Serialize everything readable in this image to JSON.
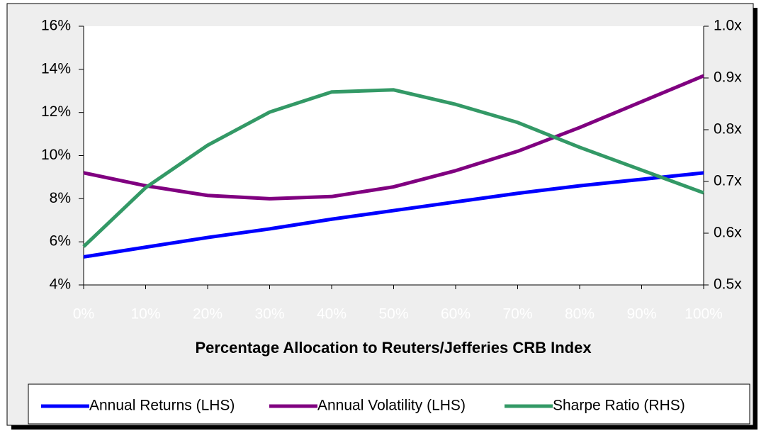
{
  "chart_data": {
    "type": "line",
    "x_label": "Percentage Allocation to Reuters/Jefferies CRB Index",
    "x": [
      0,
      10,
      20,
      30,
      40,
      50,
      60,
      70,
      80,
      90,
      100
    ],
    "xlim": [
      0,
      100
    ],
    "xticks": [
      {
        "value": 0,
        "label": "0%"
      },
      {
        "value": 10,
        "label": "10%"
      },
      {
        "value": 20,
        "label": "20%"
      },
      {
        "value": 30,
        "label": "30%"
      },
      {
        "value": 40,
        "label": "40%"
      },
      {
        "value": 50,
        "label": "50%"
      },
      {
        "value": 60,
        "label": "60%"
      },
      {
        "value": 70,
        "label": "70%"
      },
      {
        "value": 80,
        "label": "80%"
      },
      {
        "value": 90,
        "label": "90%"
      },
      {
        "value": 100,
        "label": "100%"
      }
    ],
    "ylim": [
      4,
      16
    ],
    "yticks": [
      {
        "value": 4,
        "label": "4%"
      },
      {
        "value": 6,
        "label": "6%"
      },
      {
        "value": 8,
        "label": "8%"
      },
      {
        "value": 10,
        "label": "10%"
      },
      {
        "value": 12,
        "label": "12%"
      },
      {
        "value": 14,
        "label": "14%"
      },
      {
        "value": 16,
        "label": "16%"
      }
    ],
    "y2lim": [
      0.5,
      1.0
    ],
    "y2ticks": [
      {
        "value": 0.5,
        "label": "0.5x"
      },
      {
        "value": 0.6,
        "label": "0.6x"
      },
      {
        "value": 0.7,
        "label": "0.7x"
      },
      {
        "value": 0.8,
        "label": "0.8x"
      },
      {
        "value": 0.9,
        "label": "0.9x"
      },
      {
        "value": 1.0,
        "label": "1.0x"
      }
    ],
    "legend": "bottom",
    "series": [
      {
        "name": "Annual Returns (LHS)",
        "color": "#0000ff",
        "values": [
          5.3,
          5.75,
          6.2,
          6.6,
          7.05,
          7.45,
          7.85,
          8.25,
          8.6,
          8.9,
          9.2
        ]
      },
      {
        "name": "Annual Volatility (LHS)",
        "color": "#800080",
        "values": [
          9.2,
          8.6,
          8.15,
          8.0,
          8.1,
          8.55,
          9.3,
          10.2,
          11.3,
          12.5,
          13.7
        ]
      },
      {
        "name": "Sharpe Ratio (RHS)",
        "color": "#339966",
        "axis": "y2",
        "values": [
          0.574,
          0.688,
          0.77,
          0.834,
          0.873,
          0.877,
          0.849,
          0.814,
          0.766,
          0.722,
          0.678
        ]
      }
    ]
  }
}
